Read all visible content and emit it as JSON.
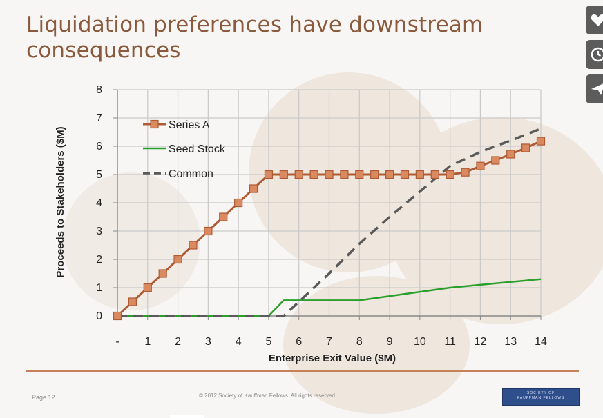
{
  "slide": {
    "title": "Liquidation preferences have downstream consequences",
    "page_label": "Page 12",
    "copyright": "© 2012 Society of Kauffman Fellows. All rights reserved.",
    "logo_text_line1": "SOCIETY OF",
    "logo_text_line2": "KAUFFMAN FELLOWS"
  },
  "side_buttons": [
    {
      "icon": "heart-icon"
    },
    {
      "icon": "clock-icon"
    },
    {
      "icon": "send-icon"
    }
  ],
  "colors": {
    "title": "#8b5a3c",
    "series_a": "#b05a34",
    "series_a_marker": "#d98a60",
    "seed_stock": "#2aa02a",
    "common": "#5a5a5a",
    "grid": "#c9c9c9",
    "accent_line": "#c8825a"
  },
  "chart_data": {
    "type": "line",
    "title": "",
    "xlabel": "Enterprise Exit Value ($M)",
    "ylabel": "Proceeds to Stakeholders ($M)",
    "x_tick_labels": [
      "-",
      "1",
      "2",
      "3",
      "4",
      "5",
      "6",
      "7",
      "8",
      "9",
      "10",
      "11",
      "12",
      "13",
      "14"
    ],
    "y_tick_labels": [
      "0",
      "1",
      "2",
      "3",
      "4",
      "5",
      "6",
      "7",
      "8"
    ],
    "xlim": [
      0,
      14
    ],
    "ylim": [
      0,
      8
    ],
    "grid": true,
    "legend_position": "top-left",
    "series": [
      {
        "name": "Series A",
        "style": "solid-square-markers",
        "points": [
          [
            0,
            0
          ],
          [
            0.5,
            0.5
          ],
          [
            1,
            1
          ],
          [
            1.5,
            1.5
          ],
          [
            2,
            2
          ],
          [
            2.5,
            2.5
          ],
          [
            3,
            3
          ],
          [
            3.5,
            3.5
          ],
          [
            4,
            4
          ],
          [
            4.5,
            4.5
          ],
          [
            5,
            5
          ],
          [
            5.5,
            5
          ],
          [
            6,
            5
          ],
          [
            6.5,
            5
          ],
          [
            7,
            5
          ],
          [
            7.5,
            5
          ],
          [
            8,
            5
          ],
          [
            8.5,
            5
          ],
          [
            9,
            5
          ],
          [
            9.5,
            5
          ],
          [
            10,
            5
          ],
          [
            10.5,
            5
          ],
          [
            11,
            5
          ],
          [
            11.5,
            5.08
          ],
          [
            12,
            5.3
          ],
          [
            12.5,
            5.5
          ],
          [
            13,
            5.72
          ],
          [
            13.5,
            5.94
          ],
          [
            14,
            6.18
          ]
        ]
      },
      {
        "name": "Seed Stock",
        "style": "solid",
        "points": [
          [
            0,
            0
          ],
          [
            5,
            0
          ],
          [
            5.5,
            0.55
          ],
          [
            6,
            0.55
          ],
          [
            7,
            0.55
          ],
          [
            8,
            0.55
          ],
          [
            9,
            0.7
          ],
          [
            10,
            0.85
          ],
          [
            11,
            1.0
          ],
          [
            12,
            1.1
          ],
          [
            13,
            1.2
          ],
          [
            14,
            1.3
          ]
        ]
      },
      {
        "name": "Common",
        "style": "dashed",
        "points": [
          [
            0,
            0
          ],
          [
            5.5,
            0
          ],
          [
            6,
            0.5
          ],
          [
            7,
            1.5
          ],
          [
            8,
            2.55
          ],
          [
            9,
            3.5
          ],
          [
            10,
            4.4
          ],
          [
            11,
            5.3
          ],
          [
            12,
            5.8
          ],
          [
            13,
            6.2
          ],
          [
            14,
            6.62
          ]
        ]
      }
    ]
  }
}
